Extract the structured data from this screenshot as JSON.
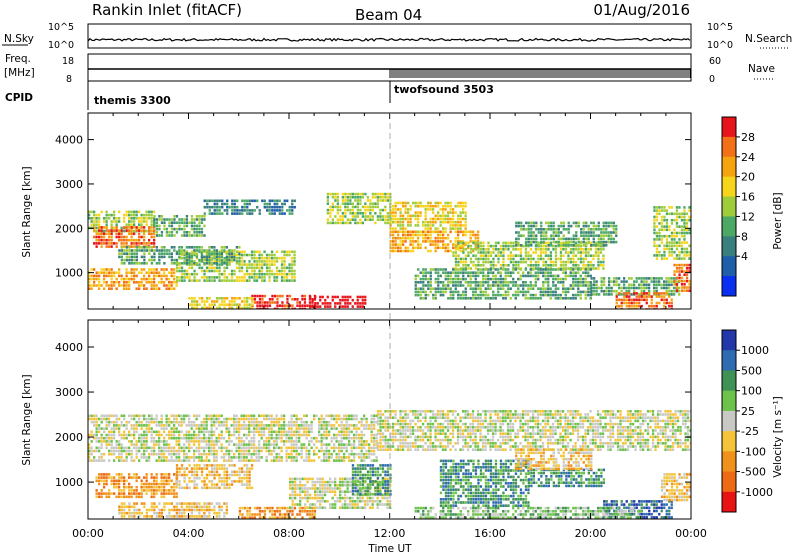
{
  "header": {
    "station": "Rankin Inlet (fitACF)",
    "beam": "Beam 04",
    "date": "01/Aug/2016"
  },
  "noise_panel": {
    "left_label": "N.Sky",
    "right_label": "N.Search",
    "left_ticks": [
      "10^5",
      "10^0"
    ],
    "right_ticks": [
      "10^5",
      "10^0"
    ]
  },
  "freq_panel": {
    "left_label_1": "Freq.",
    "left_label_2": "[MHz]",
    "right_label": "Nave",
    "left_ticks": [
      "18",
      "8"
    ],
    "right_ticks": [
      "60",
      "0"
    ]
  },
  "cpid_panel": {
    "label": "CPID",
    "modes": [
      {
        "name": "themis 3300",
        "start_hour": 0
      },
      {
        "name": "twofsound 3503",
        "start_hour": 12
      }
    ]
  },
  "chart_data": [
    {
      "type": "heatmap",
      "quantity": "Power",
      "ylabel": "Slant Range [km]",
      "yticks": [
        1000,
        2000,
        3000,
        4000
      ],
      "ylim": [
        180,
        4600
      ],
      "xlim_hours": [
        0,
        24
      ],
      "colorbar": {
        "label": "Power [dB]",
        "ticks": [
          "28",
          "24",
          "20",
          "16",
          "12",
          "8",
          "4"
        ],
        "colors": [
          "#e8141b",
          "#f27117",
          "#f5a40f",
          "#f6d51c",
          "#9fcc3b",
          "#4ca865",
          "#3a7e7d",
          "#1f5ea8",
          "#0a2ff0"
        ]
      },
      "regions": [
        {
          "t0": 0,
          "t1": 2.6,
          "r0": 1900,
          "r1": 2400,
          "level": 4
        },
        {
          "t0": 0.2,
          "t1": 2.6,
          "r0": 1600,
          "r1": 2050,
          "level": 7
        },
        {
          "t0": 2.6,
          "t1": 4.6,
          "r0": 1800,
          "r1": 2300,
          "level": 3
        },
        {
          "t0": 4.6,
          "t1": 8.2,
          "r0": 2350,
          "r1": 2650,
          "level": 2
        },
        {
          "t0": 0,
          "t1": 3.5,
          "r0": 650,
          "r1": 1100,
          "level": 6
        },
        {
          "t0": 3.5,
          "t1": 8.2,
          "r0": 800,
          "r1": 1500,
          "level": 4
        },
        {
          "t0": 1.2,
          "t1": 6,
          "r0": 1200,
          "r1": 1600,
          "level": 3
        },
        {
          "t0": 6.5,
          "t1": 9,
          "r0": 180,
          "r1": 500,
          "level": 8
        },
        {
          "t0": 8.8,
          "t1": 11,
          "r0": 180,
          "r1": 480,
          "level": 9
        },
        {
          "t0": 4,
          "t1": 6.5,
          "r0": 180,
          "r1": 450,
          "level": 5
        },
        {
          "t0": 9.5,
          "t1": 12,
          "r0": 2100,
          "r1": 2800,
          "level": 4
        },
        {
          "t0": 12,
          "t1": 15,
          "r0": 1900,
          "r1": 2600,
          "level": 5
        },
        {
          "t0": 12,
          "t1": 15.5,
          "r0": 1500,
          "r1": 1950,
          "level": 6
        },
        {
          "t0": 14.5,
          "t1": 20.5,
          "r0": 1100,
          "r1": 1700,
          "level": 4
        },
        {
          "t0": 17,
          "t1": 21,
          "r0": 1600,
          "r1": 2150,
          "level": 3
        },
        {
          "t0": 13,
          "t1": 20,
          "r0": 400,
          "r1": 1100,
          "level": 3
        },
        {
          "t0": 20,
          "t1": 23.5,
          "r0": 500,
          "r1": 900,
          "level": 3
        },
        {
          "t0": 21,
          "t1": 23.2,
          "r0": 180,
          "r1": 560,
          "level": 7
        },
        {
          "t0": 22.5,
          "t1": 24,
          "r0": 1300,
          "r1": 2500,
          "level": 4
        },
        {
          "t0": 23.3,
          "t1": 24,
          "r0": 600,
          "r1": 1200,
          "level": 7
        }
      ]
    },
    {
      "type": "heatmap",
      "quantity": "Velocity",
      "ylabel": "Slant Range [km]",
      "yticks": [
        1000,
        2000,
        3000,
        4000
      ],
      "ylim": [
        180,
        4600
      ],
      "xlim_hours": [
        0,
        24
      ],
      "xticks": [
        "00:00",
        "04:00",
        "08:00",
        "12:00",
        "16:00",
        "20:00",
        "00:00"
      ],
      "xlabel": "Time UT",
      "colorbar": {
        "label": "Velocity [m s⁻¹]",
        "ticks": [
          "1000",
          "500",
          "100",
          "25",
          "-25",
          "-100",
          "-500",
          "-1000"
        ],
        "colors": [
          "#2338a8",
          "#2f6bb1",
          "#3f9155",
          "#6cc24a",
          "#c8c8c4",
          "#f3c43a",
          "#f0911c",
          "#ee6a14",
          "#e81414"
        ]
      },
      "regions": [
        {
          "t0": 0,
          "t1": 11.5,
          "r0": 1500,
          "r1": 2500,
          "level": 4
        },
        {
          "t0": 11.5,
          "t1": 24,
          "r0": 1700,
          "r1": 2600,
          "level": 4
        },
        {
          "t0": 0.3,
          "t1": 3.5,
          "r0": 700,
          "r1": 1200,
          "level": 2
        },
        {
          "t0": 3.5,
          "t1": 6.5,
          "r0": 850,
          "r1": 1400,
          "level": 3
        },
        {
          "t0": 1.2,
          "t1": 5.5,
          "r0": 180,
          "r1": 550,
          "level": 3
        },
        {
          "t0": 6,
          "t1": 9,
          "r0": 180,
          "r1": 450,
          "level": 2
        },
        {
          "t0": 8,
          "t1": 12,
          "r0": 450,
          "r1": 1100,
          "level": 4
        },
        {
          "t0": 10.5,
          "t1": 12,
          "r0": 700,
          "r1": 1400,
          "level": 6
        },
        {
          "t0": 14,
          "t1": 17.5,
          "r0": 500,
          "r1": 1500,
          "level": 6
        },
        {
          "t0": 17.5,
          "t1": 20.5,
          "r0": 900,
          "r1": 1300,
          "level": 6
        },
        {
          "t0": 17,
          "t1": 20,
          "r0": 1300,
          "r1": 1750,
          "level": 3
        },
        {
          "t0": 20.5,
          "t1": 23.2,
          "r0": 180,
          "r1": 600,
          "level": 7
        },
        {
          "t0": 22.8,
          "t1": 24,
          "r0": 600,
          "r1": 1200,
          "level": 3
        },
        {
          "t0": 13,
          "t1": 22,
          "r0": 180,
          "r1": 450,
          "level": 5
        }
      ]
    }
  ]
}
